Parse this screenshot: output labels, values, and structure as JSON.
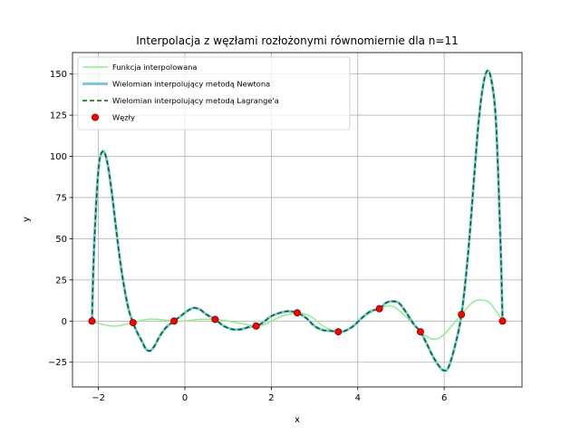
{
  "chart_data": {
    "type": "line",
    "title": "Interpolacja z węzłami rozłożonymi równomiernie dla n=11",
    "xlabel": "x",
    "ylabel": "y",
    "xlim": [
      -2.6,
      7.8
    ],
    "ylim": [
      -40,
      163
    ],
    "xticks": [
      -2,
      0,
      2,
      4,
      6
    ],
    "yticks": [
      -25,
      0,
      25,
      50,
      75,
      100,
      125,
      150
    ],
    "grid": true,
    "legend_position": "top-left",
    "nodes": {
      "x": [
        -2.15,
        -1.2,
        -0.25,
        0.7,
        1.65,
        2.6,
        3.55,
        4.5,
        5.45,
        6.4,
        7.35
      ],
      "y": [
        0,
        -1,
        0,
        1,
        -3,
        5,
        -6.5,
        7.5,
        -6.5,
        4,
        0
      ]
    },
    "series": [
      {
        "name": "Funkcja interpolowana",
        "color": "#90ee90",
        "width": 1.5,
        "dash": "",
        "x": [
          -2.15,
          -1.9,
          -1.6,
          -1.2,
          -0.9,
          -0.6,
          -0.25,
          0.0,
          0.3,
          0.7,
          1.0,
          1.3,
          1.65,
          1.9,
          2.2,
          2.6,
          2.9,
          3.2,
          3.55,
          3.8,
          4.1,
          4.5,
          4.8,
          5.1,
          5.45,
          5.75,
          6.0,
          6.4,
          6.7,
          7.0,
          7.2,
          7.35
        ],
        "y": [
          0,
          -2,
          -3,
          -1,
          1,
          1,
          0,
          0,
          1,
          1,
          0,
          -1.5,
          -3,
          -1.5,
          2.5,
          5,
          3,
          -3,
          -6.5,
          -5,
          2,
          7.5,
          9,
          3,
          -6.5,
          -11,
          -8,
          4,
          12,
          12,
          6,
          0
        ]
      },
      {
        "name": "Wielomian interpolujący metodą Newtona",
        "color": "#7ec8e3",
        "width": 3,
        "dash": "",
        "x": [
          -2.15,
          -2.1,
          -2.0,
          -1.9,
          -1.8,
          -1.7,
          -1.6,
          -1.5,
          -1.4,
          -1.3,
          -1.2,
          -1.1,
          -1.0,
          -0.9,
          -0.8,
          -0.7,
          -0.6,
          -0.5,
          -0.4,
          -0.25,
          -0.1,
          0.05,
          0.2,
          0.35,
          0.5,
          0.7,
          0.9,
          1.1,
          1.3,
          1.5,
          1.65,
          1.8,
          2.0,
          2.2,
          2.4,
          2.6,
          2.8,
          3.0,
          3.2,
          3.4,
          3.55,
          3.7,
          3.9,
          4.1,
          4.3,
          4.5,
          4.65,
          4.8,
          4.95,
          5.1,
          5.3,
          5.45,
          5.6,
          5.75,
          5.9,
          6.0,
          6.1,
          6.25,
          6.4,
          6.55,
          6.7,
          6.8,
          6.9,
          7.0,
          7.1,
          7.2,
          7.3,
          7.35
        ],
        "y": [
          0,
          45,
          92,
          103,
          97,
          80,
          58,
          37,
          20,
          7,
          -1,
          -7,
          -12,
          -17,
          -18,
          -15,
          -10,
          -6,
          -3,
          0,
          3,
          6,
          8,
          7,
          4,
          1,
          -3,
          -5,
          -5,
          -3.5,
          -3,
          -1,
          3,
          5,
          6,
          5,
          2,
          -3,
          -5.5,
          -6,
          -6.5,
          -6,
          -3,
          2,
          6,
          7.5,
          11,
          12,
          11,
          6,
          -2,
          -6.5,
          -14,
          -22,
          -28,
          -30,
          -28,
          -15,
          4,
          40,
          90,
          122,
          143,
          152,
          145,
          120,
          50,
          0
        ]
      },
      {
        "name": "Wielomian interpolujący metodą Lagrange'a",
        "color": "#006400",
        "width": 1.5,
        "dash": "5,3",
        "x": [
          -2.15,
          -2.1,
          -2.0,
          -1.9,
          -1.8,
          -1.7,
          -1.6,
          -1.5,
          -1.4,
          -1.3,
          -1.2,
          -1.1,
          -1.0,
          -0.9,
          -0.8,
          -0.7,
          -0.6,
          -0.5,
          -0.4,
          -0.25,
          -0.1,
          0.05,
          0.2,
          0.35,
          0.5,
          0.7,
          0.9,
          1.1,
          1.3,
          1.5,
          1.65,
          1.8,
          2.0,
          2.2,
          2.4,
          2.6,
          2.8,
          3.0,
          3.2,
          3.4,
          3.55,
          3.7,
          3.9,
          4.1,
          4.3,
          4.5,
          4.65,
          4.8,
          4.95,
          5.1,
          5.3,
          5.45,
          5.6,
          5.75,
          5.9,
          6.0,
          6.1,
          6.25,
          6.4,
          6.55,
          6.7,
          6.8,
          6.9,
          7.0,
          7.1,
          7.2,
          7.3,
          7.35
        ],
        "y": [
          0,
          45,
          92,
          103,
          97,
          80,
          58,
          37,
          20,
          7,
          -1,
          -7,
          -12,
          -17,
          -18,
          -15,
          -10,
          -6,
          -3,
          0,
          3,
          6,
          8,
          7,
          4,
          1,
          -3,
          -5,
          -5,
          -3.5,
          -3,
          -1,
          3,
          5,
          6,
          5,
          2,
          -3,
          -5.5,
          -6,
          -6.5,
          -6,
          -3,
          2,
          6,
          7.5,
          11,
          12,
          11,
          6,
          -2,
          -6.5,
          -14,
          -22,
          -28,
          -30,
          -28,
          -15,
          4,
          40,
          90,
          122,
          143,
          152,
          145,
          120,
          50,
          0
        ]
      }
    ],
    "node_series_name": "Węzły",
    "node_color": "#ff0000",
    "node_edge_color": "#800000"
  }
}
